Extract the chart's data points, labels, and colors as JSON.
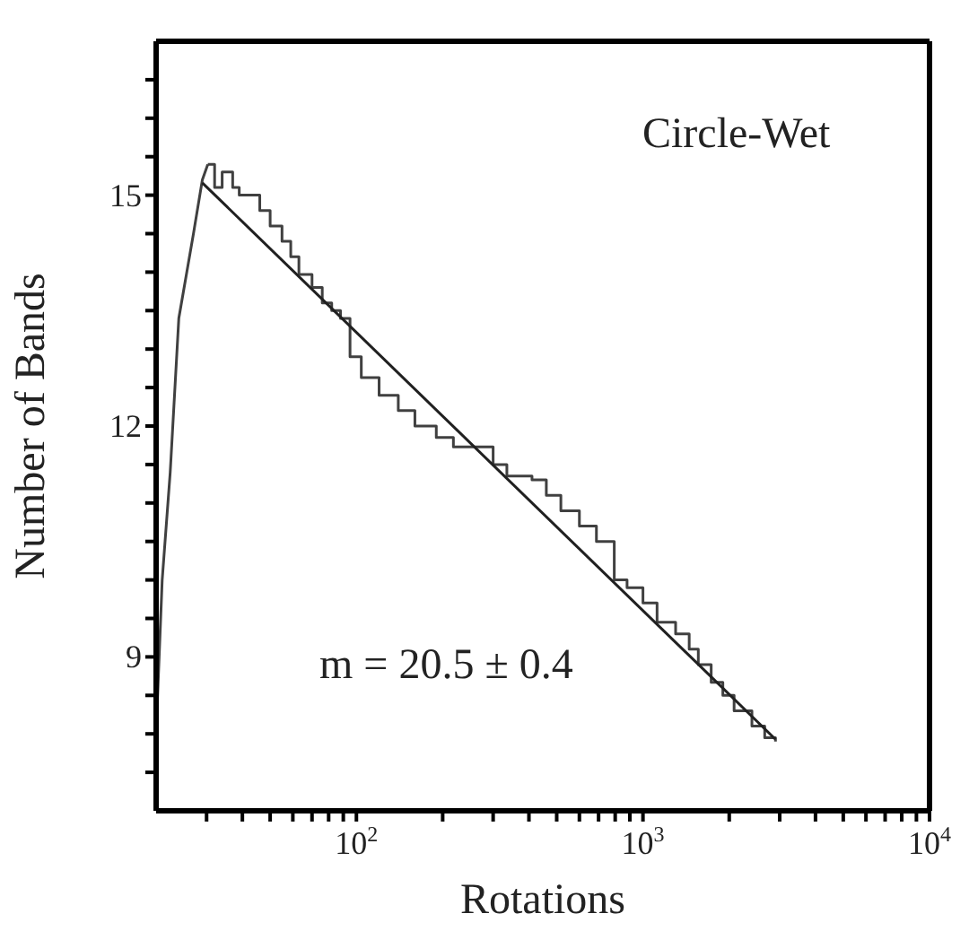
{
  "chart_data": {
    "type": "line",
    "xlabel": "Rotations",
    "ylabel": "Number of Bands",
    "log": "x",
    "xlim": [
      20,
      10000
    ],
    "ylim": [
      7,
      17
    ],
    "xticks": [
      {
        "value": 30,
        "label": null
      },
      {
        "value": 40,
        "label": null
      },
      {
        "value": 50,
        "label": null
      },
      {
        "value": 60,
        "label": null
      },
      {
        "value": 70,
        "label": null
      },
      {
        "value": 80,
        "label": null
      },
      {
        "value": 90,
        "label": null
      },
      {
        "value": 100,
        "label": "10$^{2}$"
      },
      {
        "value": 200,
        "label": null
      },
      {
        "value": 300,
        "label": null
      },
      {
        "value": 400,
        "label": null
      },
      {
        "value": 500,
        "label": null
      },
      {
        "value": 600,
        "label": null
      },
      {
        "value": 700,
        "label": null
      },
      {
        "value": 800,
        "label": null
      },
      {
        "value": 900,
        "label": null
      },
      {
        "value": 1000,
        "label": "10$^{3}$"
      },
      {
        "value": 2000,
        "label": null
      },
      {
        "value": 3000,
        "label": null
      },
      {
        "value": 4000,
        "label": null
      },
      {
        "value": 5000,
        "label": null
      },
      {
        "value": 6000,
        "label": null
      },
      {
        "value": 7000,
        "label": null
      },
      {
        "value": 8000,
        "label": null
      },
      {
        "value": 9000,
        "label": null
      },
      {
        "value": 10000,
        "label": "10$^{4}$"
      }
    ],
    "yticks": [
      {
        "value": 7.5,
        "label": null
      },
      {
        "value": 8,
        "label": null
      },
      {
        "value": 8.5,
        "label": null
      },
      9,
      {
        "value": 9.5,
        "label": null
      },
      {
        "value": 10,
        "label": null
      },
      {
        "value": 10.5,
        "label": null
      },
      {
        "value": 11,
        "label": null
      },
      {
        "value": 11.5,
        "label": null
      },
      12,
      {
        "value": 12.5,
        "label": null
      },
      {
        "value": 13,
        "label": null
      },
      {
        "value": 13.5,
        "label": null
      },
      {
        "value": 14,
        "label": null
      },
      {
        "value": 14.5,
        "label": null
      },
      15,
      {
        "value": 15.5,
        "label": null
      },
      {
        "value": 16,
        "label": null
      },
      {
        "value": 16.5,
        "label": null
      }
    ],
    "marker": "none",
    "series": [
      {
        "color": "#404040",
        "x": [
          20,
          21,
          22.4,
          24,
          27,
          29,
          30.3
        ],
        "values": [
          8.0,
          10.0,
          11.4,
          13.4,
          14.5,
          15.2,
          15.4
        ]
      },
      {
        "type": "step",
        "color": "#404040",
        "x": [
          30.3,
          32,
          34,
          37,
          39,
          41,
          46,
          50,
          55,
          59,
          63,
          70,
          76,
          82,
          88,
          95,
          104,
          120,
          140,
          160,
          190,
          218,
          266,
          300,
          335,
          410,
          460,
          517,
          600,
          688,
          794,
          880,
          1000,
          1120,
          1300,
          1450,
          1560,
          1730,
          1900,
          2080,
          2400,
          2660,
          2900
        ],
        "values": [
          15.4,
          15.1,
          15.3,
          15.1,
          15.0,
          15.0,
          14.8,
          14.6,
          14.4,
          14.2,
          13.97,
          13.8,
          13.6,
          13.5,
          13.4,
          12.9,
          12.63,
          12.4,
          12.2,
          12.0,
          11.85,
          11.73,
          11.73,
          11.5,
          11.35,
          11.3,
          11.1,
          10.9,
          10.7,
          10.5,
          10.0,
          9.9,
          9.7,
          9.45,
          9.3,
          9.1,
          8.9,
          8.67,
          8.5,
          8.3,
          8.1,
          7.95,
          7.9
        ]
      },
      {
        "color": "#202020",
        "x": [
          29,
          2900
        ],
        "values": [
          15.16,
          7.93
        ]
      }
    ],
    "annotations": [
      "Circle-Wet",
      "m = 20.5 ± 0.4"
    ]
  }
}
